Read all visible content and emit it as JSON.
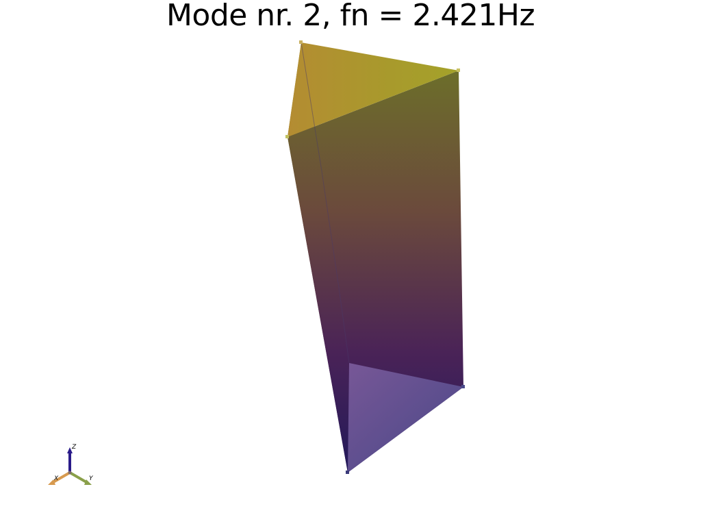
{
  "title": "Mode nr. 2, fn = 2.421Hz",
  "colors": {
    "top": "#a8a22a",
    "top_warm": "#b08a35",
    "mid": "#5a3a55",
    "bottom": "#2a1f5a",
    "bottom_face": "#6a5a9a",
    "axis_x": "#d79a4f",
    "axis_y": "#8aa04a",
    "axis_z": "#2a1b8a"
  },
  "axes_widget": {
    "x_label": "X",
    "y_label": "Y",
    "z_label": "Z"
  }
}
